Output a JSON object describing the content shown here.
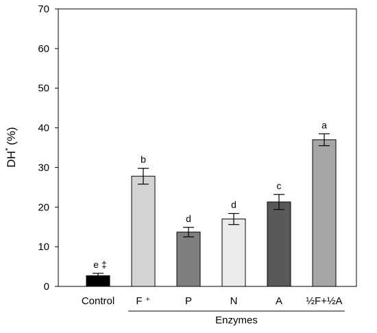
{
  "chart_data": {
    "type": "bar",
    "ylabel_main": "DH",
    "ylabel_sup": "*",
    "ylabel_unit": "(%)",
    "xgroup_label": "Enzymes",
    "ylim": [
      0,
      70
    ],
    "yticks": [
      "0",
      "10",
      "20",
      "30",
      "40",
      "50",
      "60",
      "70"
    ],
    "ytick_values": [
      0,
      10,
      20,
      30,
      40,
      50,
      60,
      70
    ],
    "categories": [
      "Control",
      "F ⁺",
      "P",
      "N",
      "A",
      "½F+½A"
    ],
    "values": [
      2.7,
      27.8,
      13.7,
      17.0,
      21.3,
      37.0
    ],
    "errors": [
      0.6,
      2.0,
      1.2,
      1.4,
      1.9,
      1.5
    ],
    "significance": [
      "e ‡",
      "b",
      "d",
      "d",
      "c",
      "a"
    ],
    "colors": [
      "#000000",
      "#d4d4d4",
      "#7f7f7f",
      "#ebebeb",
      "#595959",
      "#a6a6a6"
    ],
    "grouped_categories": [
      "F ⁺",
      "P",
      "N",
      "A",
      "½F+½A"
    ]
  }
}
